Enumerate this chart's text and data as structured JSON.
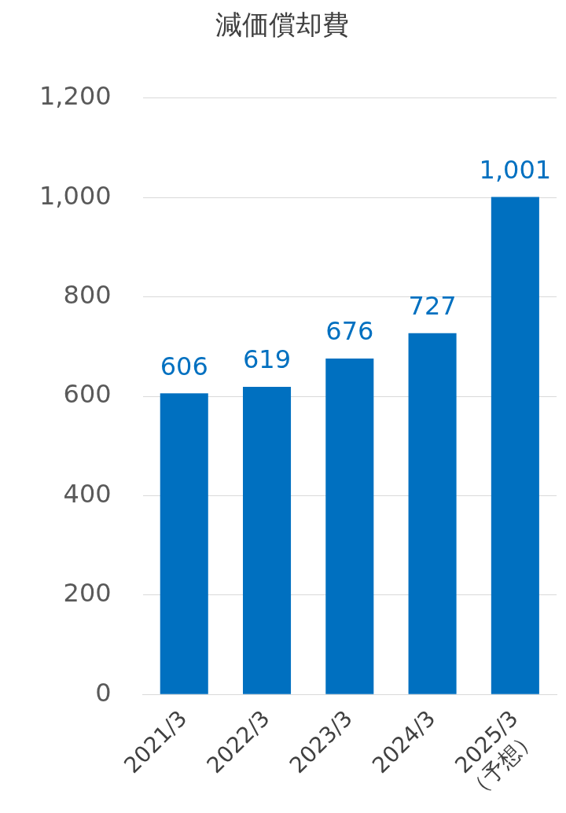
{
  "chart_data": {
    "type": "bar",
    "title": "減価償却費",
    "categories": [
      "2021/3",
      "2022/3",
      "2023/3",
      "2024/3",
      "2025/3\n（予想）"
    ],
    "values": [
      606,
      619,
      676,
      727,
      1001
    ],
    "value_labels": [
      "606",
      "619",
      "676",
      "727",
      "1,001"
    ],
    "color": "#0070c0",
    "ylim": [
      0,
      1200
    ],
    "yticks": [
      0,
      200,
      400,
      600,
      800,
      {
        "value": 1000,
        "label": "1,000"
      },
      {
        "value": 1200,
        "label": "1,200"
      }
    ],
    "grid": "y",
    "legend": false
  }
}
